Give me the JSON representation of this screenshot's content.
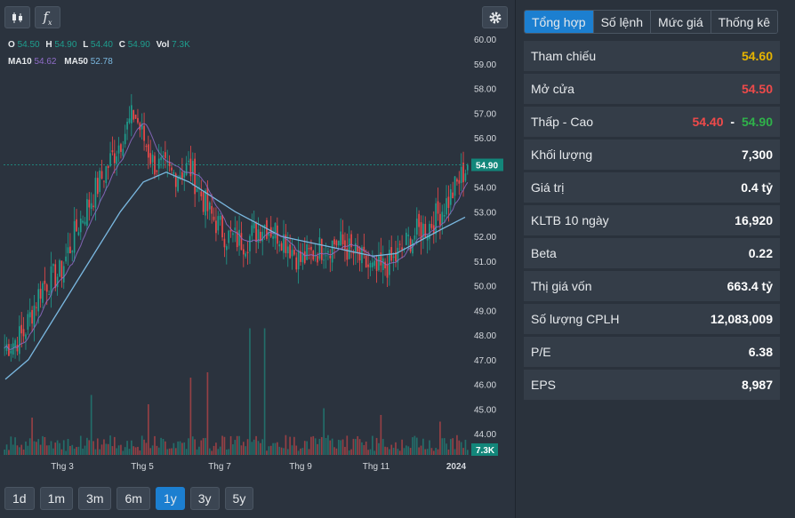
{
  "toolbar": {
    "candle_icon": "candlestick-icon",
    "fx_label": "f",
    "fx_sub": "x",
    "settings_icon": "gear-icon"
  },
  "legend": {
    "ohlc_labels": [
      "O",
      "H",
      "L",
      "C",
      "Vol"
    ],
    "ohlc_values": [
      "54.50",
      "54.90",
      "54.40",
      "54.90",
      "7.3K"
    ],
    "ma10_label": "MA10",
    "ma10_value": "54.62",
    "ma50_label": "MA50",
    "ma50_value": "52.78"
  },
  "price_axis": {
    "ticks": [
      "60.00",
      "59.00",
      "58.00",
      "57.00",
      "56.00",
      "55.00",
      "54.00",
      "53.00",
      "52.00",
      "51.00",
      "50.00",
      "49.00",
      "48.00",
      "47.00",
      "46.00",
      "45.00",
      "44.00"
    ],
    "last_price": "54.90",
    "last_volume": "7.3K"
  },
  "time_axis": [
    "Thg 3",
    "Thg 5",
    "Thg 7",
    "Thg 9",
    "Thg 11",
    "2024"
  ],
  "ranges": [
    "1d",
    "1m",
    "3m",
    "6m",
    "1y",
    "3y",
    "5y"
  ],
  "active_range": "1y",
  "tabs": [
    "Tổng hợp",
    "Số lệnh",
    "Mức giá",
    "Thống kê"
  ],
  "active_tab": "Tổng hợp",
  "summary": [
    {
      "label": "Tham chiếu",
      "value": "54.60",
      "color": "#e6b400"
    },
    {
      "label": "Mở cửa",
      "value": "54.50",
      "color": "#ef4a4a"
    },
    {
      "label": "Thấp - Cao",
      "value_low": "54.40",
      "separator": "-",
      "value_high": "54.90"
    },
    {
      "label": "Khối lượng",
      "value": "7,300"
    },
    {
      "label": "Giá trị",
      "value": "0.4 tỷ"
    },
    {
      "label": "KLTB 10 ngày",
      "value": "16,920"
    },
    {
      "label": "Beta",
      "value": "0.22"
    },
    {
      "label": "Thị giá vốn",
      "value": "663.4 tỷ"
    },
    {
      "label": "Số lượng CPLH",
      "value": "12,083,009"
    },
    {
      "label": "P/E",
      "value": "6.38"
    },
    {
      "label": "EPS",
      "value": "8,987"
    }
  ],
  "colors": {
    "up": "#1e9e8e",
    "down": "#ef4a4a",
    "ma10": "#8f6cc8",
    "ma50": "#7ab8e0",
    "accent": "#1c7fd0",
    "reference": "#e6b400"
  },
  "chart_data": {
    "type": "candlestick",
    "period": "1y",
    "ylim": [
      44,
      60
    ],
    "months": [
      "Thg 3",
      "Thg 5",
      "Thg 7",
      "Thg 9",
      "Thg 11",
      "2024"
    ],
    "close_path": [
      47.5,
      48.0,
      50.0,
      50.5,
      52.5,
      54.0,
      55.5,
      57.0,
      55.0,
      54.5,
      54.8,
      53.0,
      52.0,
      51.8,
      52.5,
      52.0,
      51.0,
      51.5,
      51.8,
      51.2,
      50.5,
      51.0,
      52.0,
      52.5,
      53.5,
      54.9
    ],
    "ma50_path": [
      46.2,
      47.0,
      48.5,
      50.0,
      51.5,
      53.0,
      54.2,
      54.6,
      54.2,
      53.6,
      53.0,
      52.5,
      52.0,
      51.8,
      51.6,
      51.4,
      51.2,
      51.3,
      51.8,
      52.3,
      52.78
    ],
    "volume_spikes": [
      0.28,
      0.45,
      0.38,
      0.62,
      0.95,
      0.35,
      0.3,
      0.25
    ]
  }
}
